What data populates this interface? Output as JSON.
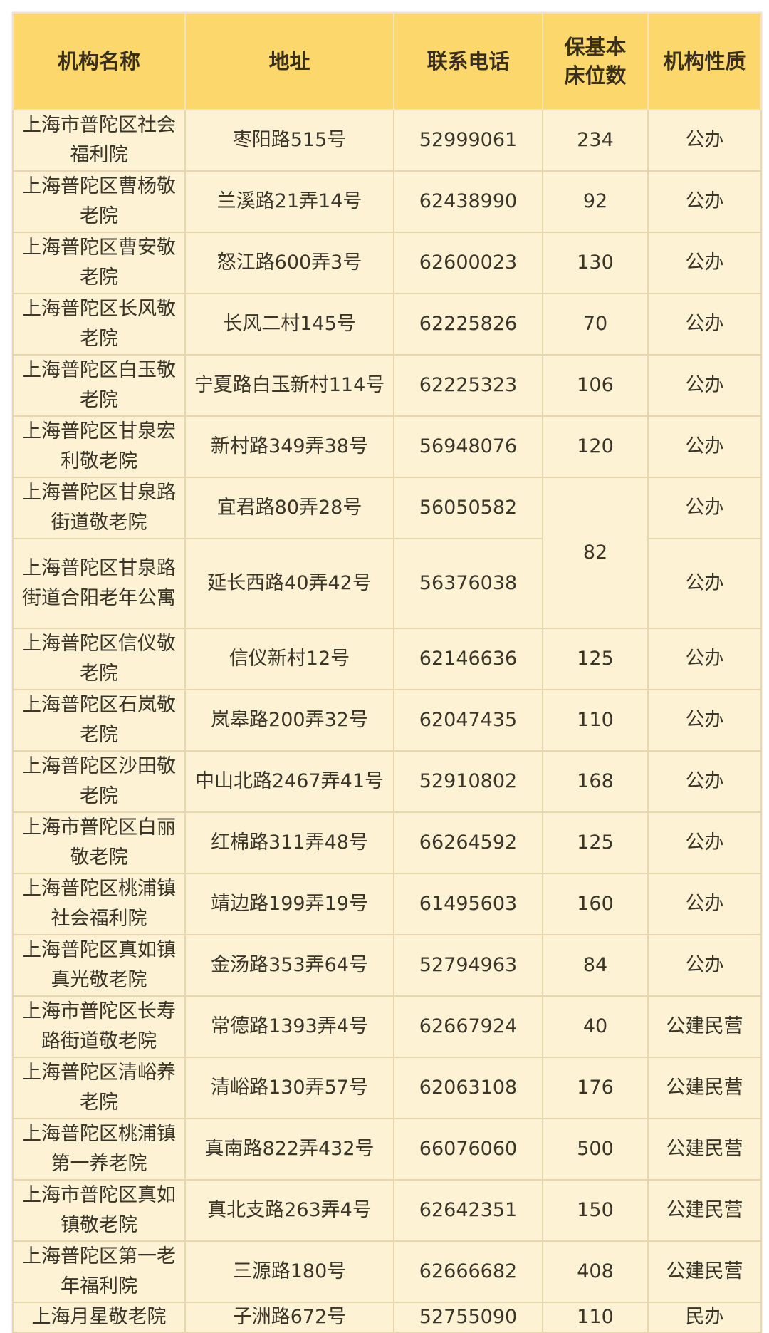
{
  "headers": [
    "机构名称",
    "地址",
    "联系电话",
    "保基本床位数",
    "机构性质"
  ],
  "rows": [
    {
      "name": "上海市普陀区社会福利院",
      "address": "枣阳路515号",
      "phone": "52999061",
      "beds": "234",
      "type": "公办"
    },
    {
      "name": "上海普陀区曹杨敬老院",
      "address": "兰溪路21弄14号",
      "phone": "62438990",
      "beds": "92",
      "type": "公办"
    },
    {
      "name": "上海普陀区曹安敬老院",
      "address": "怒江路600弄3号",
      "phone": "62600023",
      "beds": "130",
      "type": "公办"
    },
    {
      "name": "上海普陀区长风敬老院",
      "address": "长风二村145号",
      "phone": "62225826",
      "beds": "70",
      "type": "公办"
    },
    {
      "name": "上海普陀区白玉敬老院",
      "address": "宁夏路白玉新村114号",
      "phone": "62225323",
      "beds": "106",
      "type": "公办"
    },
    {
      "name": "上海普陀区甘泉宏利敬老院",
      "address": "新村路349弄38号",
      "phone": "56948076",
      "beds": "120",
      "type": "公办"
    },
    {
      "name": "上海普陀区甘泉路街道敬老院",
      "address": "宜君路80弄28号",
      "phone": "56050582",
      "beds": "82",
      "type": "公办"
    },
    {
      "name": "上海普陀区甘泉路街道合阳老年公寓",
      "address": "延长西路40弄42号",
      "phone": "56376038",
      "beds": "",
      "type": "公办"
    },
    {
      "name": "上海普陀区信仪敬老院",
      "address": "信仪新村12号",
      "phone": "62146636",
      "beds": "125",
      "type": "公办"
    },
    {
      "name": "上海普陀区石岚敬老院",
      "address": "岚皋路200弄32号",
      "phone": "62047435",
      "beds": "110",
      "type": "公办"
    },
    {
      "name": "上海普陀区沙田敬老院",
      "address": "中山北路2467弄41号",
      "phone": "52910802",
      "beds": "168",
      "type": "公办"
    },
    {
      "name": "上海市普陀区白丽敬老院",
      "address": "红棉路311弄48号",
      "phone": "66264592",
      "beds": "125",
      "type": "公办"
    },
    {
      "name": "上海普陀区桃浦镇社会福利院",
      "address": "靖边路199弄19号",
      "phone": "61495603",
      "beds": "160",
      "type": "公办"
    },
    {
      "name": "上海普陀区真如镇真光敬老院",
      "address": "金汤路353弄64号",
      "phone": "52794963",
      "beds": "84",
      "type": "公办"
    },
    {
      "name": "上海市普陀区长寿路街道敬老院",
      "address": "常德路1393弄4号",
      "phone": "62667924",
      "beds": "40",
      "type": "公建民营"
    },
    {
      "name": "上海普陀区清峪养老院",
      "address": "清峪路130弄57号",
      "phone": "62063108",
      "beds": "176",
      "type": "公建民营"
    },
    {
      "name": "上海普陀区桃浦镇第一养老院",
      "address": "真南路822弄432号",
      "phone": "66076060",
      "beds": "500",
      "type": "公建民营"
    },
    {
      "name": "上海市普陀区真如镇敬老院",
      "address": "真北支路263弄4号",
      "phone": "62642351",
      "beds": "150",
      "type": "公建民营"
    },
    {
      "name": "上海普陀区第一老年福利院",
      "address": "三源路180号",
      "phone": "62666682",
      "beds": "408",
      "type": "公建民营"
    },
    {
      "name": "上海月星敬老院",
      "address": "子洲路672号",
      "phone": "52755090",
      "beds": "110",
      "type": "民办"
    }
  ],
  "colors": {
    "header_bg": "#fcd86c",
    "row_bg": "#fdf3d4",
    "border": "#e8d7ae"
  }
}
